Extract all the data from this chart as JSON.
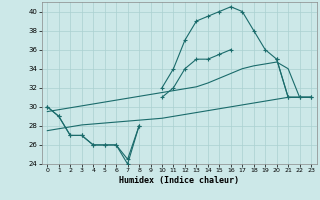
{
  "xlabel": "Humidex (Indice chaleur)",
  "xlim": [
    -0.5,
    23.5
  ],
  "ylim": [
    24,
    41
  ],
  "yticks": [
    24,
    26,
    28,
    30,
    32,
    34,
    36,
    38,
    40
  ],
  "xticks": [
    0,
    1,
    2,
    3,
    4,
    5,
    6,
    7,
    8,
    9,
    10,
    11,
    12,
    13,
    14,
    15,
    16,
    17,
    18,
    19,
    20,
    21,
    22,
    23
  ],
  "background_color": "#cce8e8",
  "grid_color": "#aad0d0",
  "line_color": "#1a6b6b",
  "x": [
    0,
    1,
    2,
    3,
    4,
    5,
    6,
    7,
    8,
    9,
    10,
    11,
    12,
    13,
    14,
    15,
    16,
    17,
    18,
    19,
    20,
    21,
    22,
    23
  ],
  "line_max": [
    30,
    29,
    27,
    27,
    26,
    26,
    26,
    24,
    28,
    null,
    32,
    34,
    37,
    39,
    39.5,
    40,
    40.5,
    40,
    38,
    36,
    35,
    31,
    31,
    31
  ],
  "line_mid": [
    30,
    29,
    27,
    27,
    26,
    26,
    26,
    24.5,
    28,
    null,
    31,
    32,
    34,
    35,
    35,
    35.5,
    36,
    null,
    null,
    null,
    35,
    31,
    31,
    31
  ],
  "line_trend1": [
    29.5,
    29.7,
    29.9,
    30.1,
    30.3,
    30.5,
    30.7,
    30.9,
    31.1,
    31.3,
    31.5,
    31.7,
    31.9,
    32.1,
    32.5,
    33.0,
    33.5,
    34.0,
    34.3,
    34.5,
    34.7,
    34.0,
    31.0,
    31.0
  ],
  "line_trend2": [
    27.5,
    27.7,
    27.9,
    28.1,
    28.2,
    28.3,
    28.4,
    28.5,
    28.6,
    28.7,
    28.8,
    29.0,
    29.2,
    29.4,
    29.6,
    29.8,
    30.0,
    30.2,
    30.4,
    30.6,
    30.8,
    31.0,
    31.0,
    31.0
  ]
}
